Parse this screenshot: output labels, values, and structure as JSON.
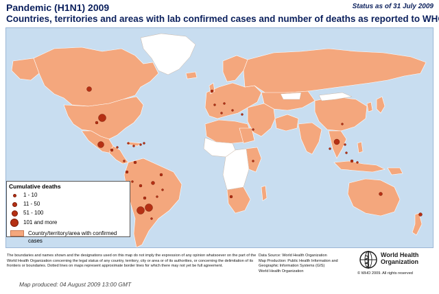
{
  "header": {
    "title_line1": "Pandemic (H1N1) 2009",
    "title_line2": "Countries, territories and areas with lab confirmed cases and number of deaths as reported to WHO",
    "status": "Status as of 31 July 2009"
  },
  "colors": {
    "ocean": "#c8ddf0",
    "confirmed_country": "#f4a77d",
    "no_data_country": "#ffffff",
    "death_marker": "#b53014",
    "text_navy": "#0a1f5c"
  },
  "legend": {
    "title": "Cumulative deaths",
    "classes": [
      {
        "label": "1 - 10",
        "size": "smallest"
      },
      {
        "label": "11 - 50",
        "size": "small"
      },
      {
        "label": "51 - 100",
        "size": "medium"
      },
      {
        "label": "101 and more",
        "size": "large"
      }
    ],
    "area_label": "Country/territory/area with confirmed cases"
  },
  "footer": {
    "disclaimer": "The boundaries and names shown and the designations used on this map do not imply the expression of any opinion whatsoever on the part of the World Health Organization concerning the legal status of any country, territory, city or area or of its authorities, or concerning the delimitation of its frontiers or boundaries. Dotted lines on maps represent approximate border lines for which there may not yet be full agreement.",
    "data_source": "Data Source: World Health Organization",
    "map_production": "Map Production: Public Health Information and Geographic Information Systems (GIS)",
    "map_production_org": "World Health Organization",
    "who_name_line1": "World Health",
    "who_name_line2": "Organization",
    "copyright": "© WHO 2009. All rights reserved",
    "map_produced": "Map produced: 04 August 2009 13:00 GMT"
  },
  "icons": {
    "logo": "who-emblem-icon"
  }
}
